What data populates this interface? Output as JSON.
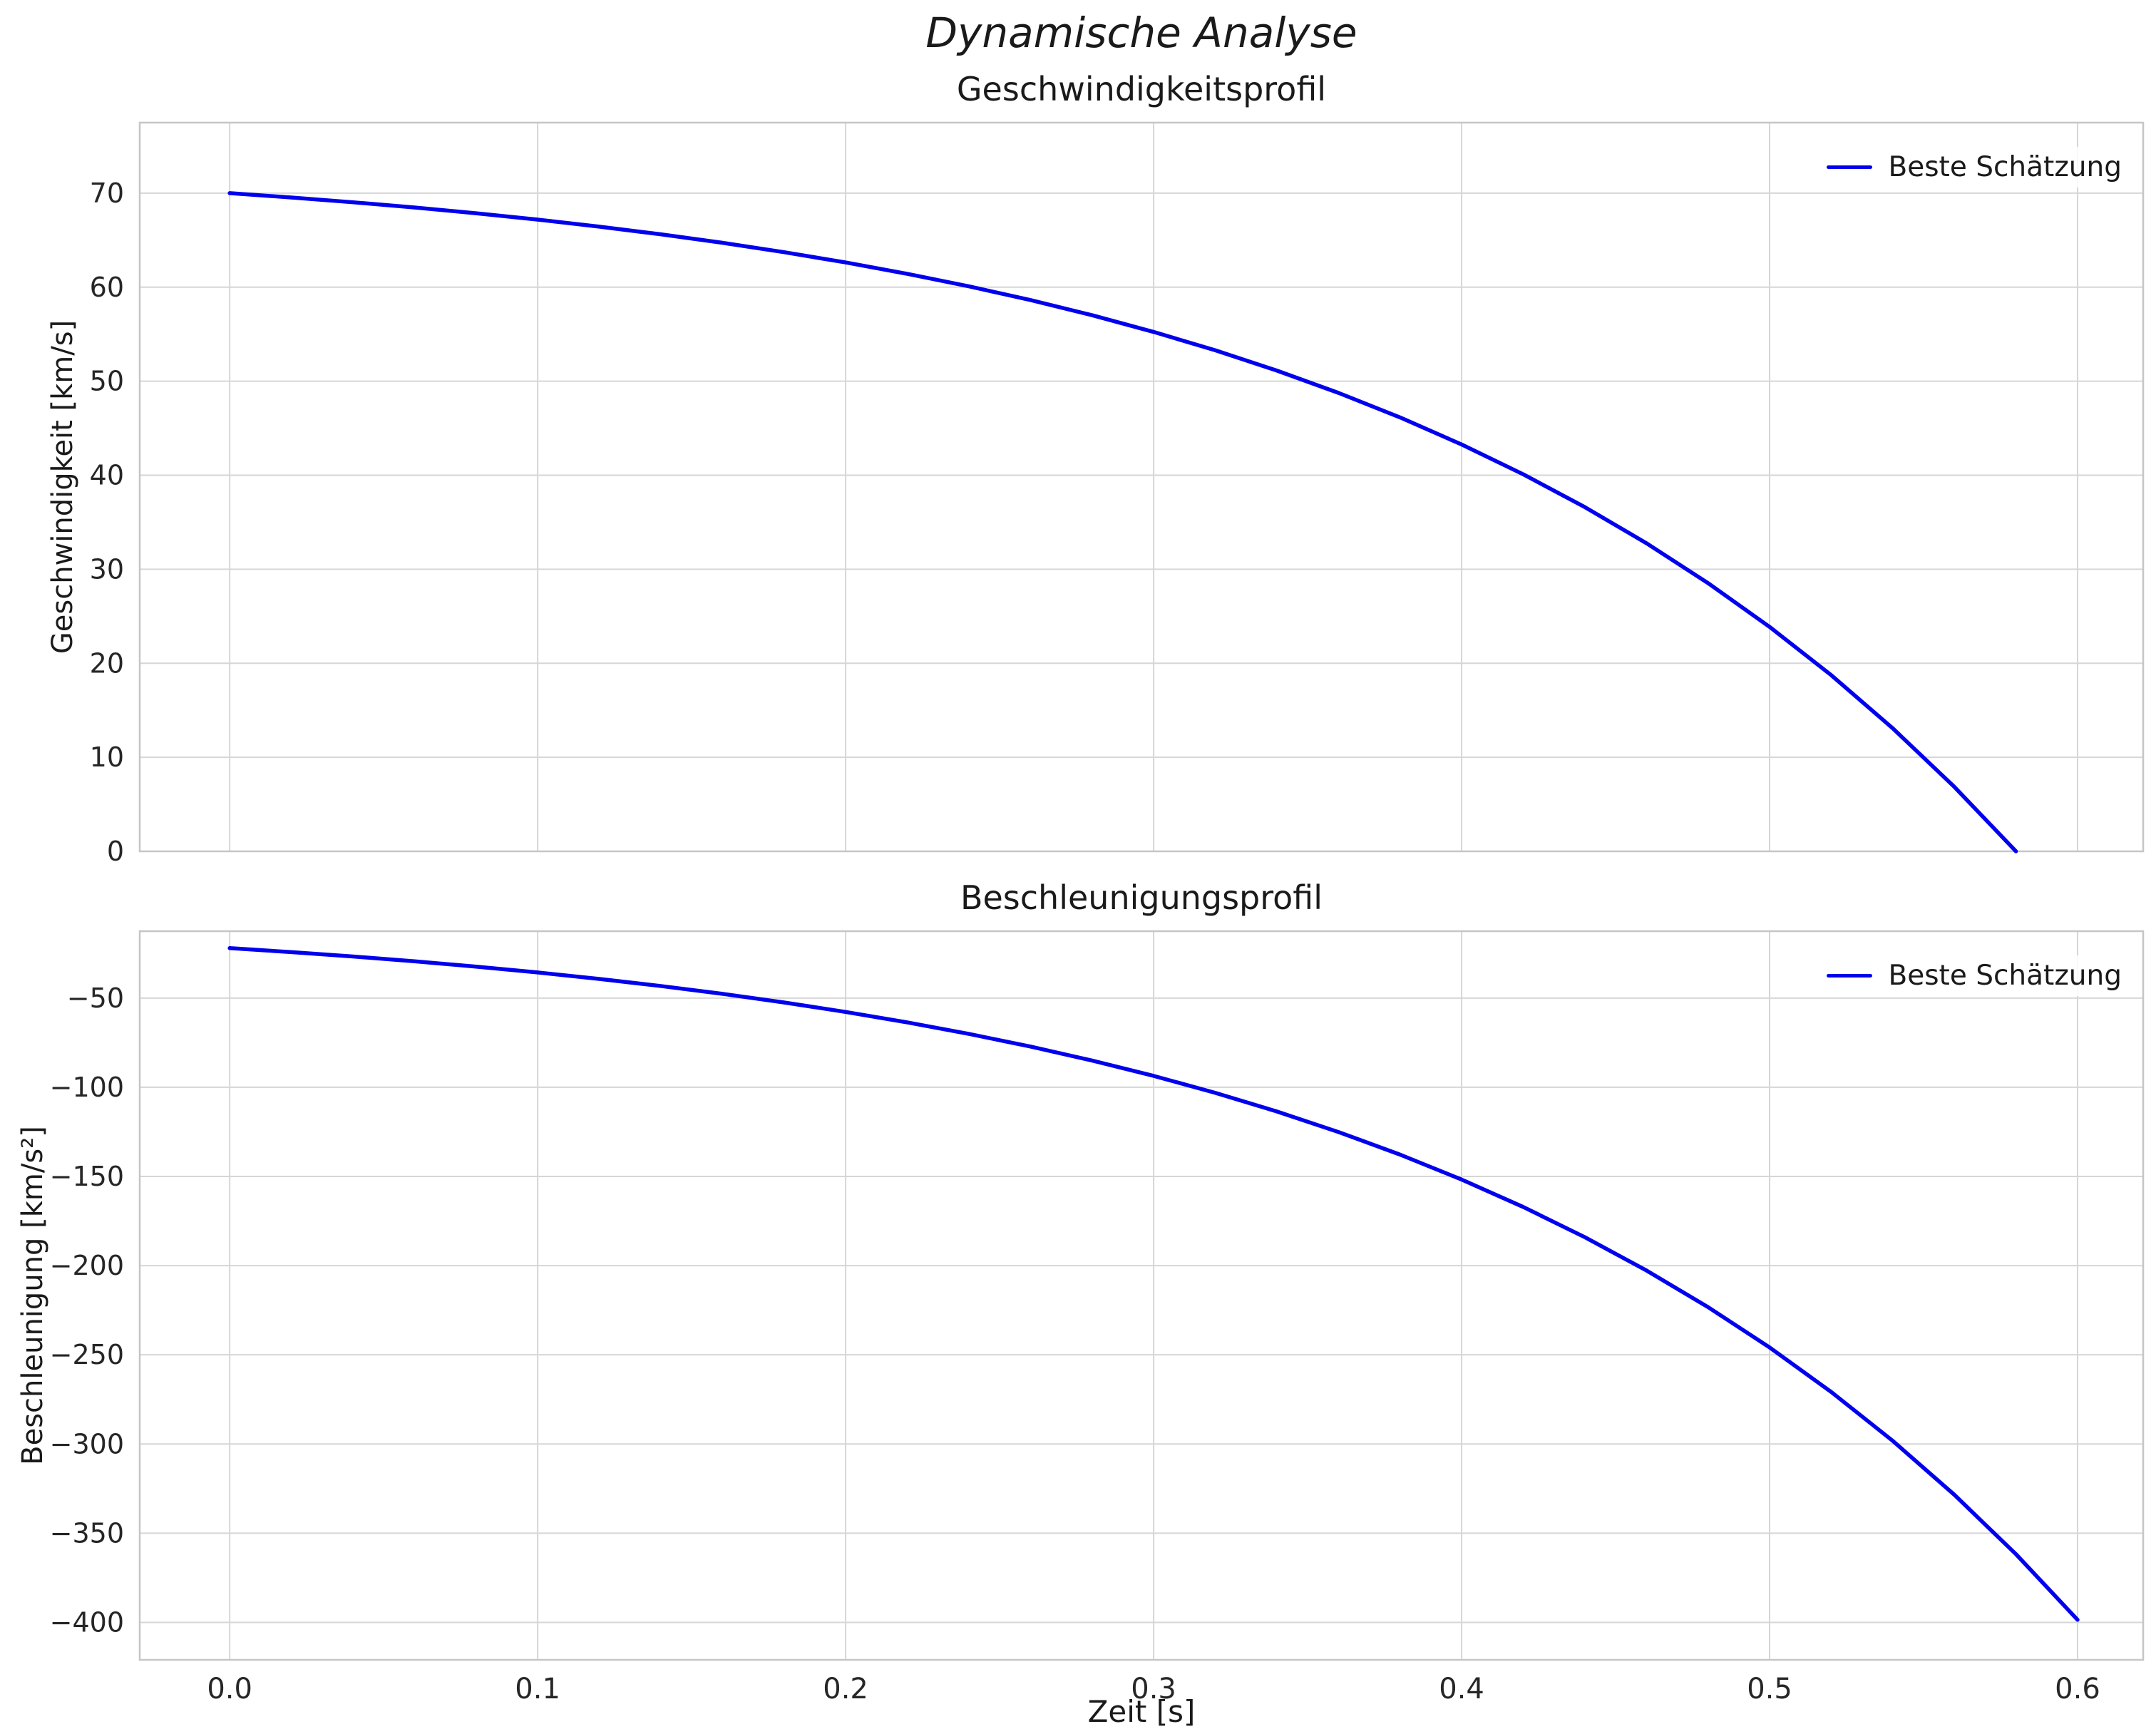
{
  "figure": {
    "title": "Dynamische Analyse"
  },
  "xlabel": "Zeit [s]",
  "colors": {
    "line": "#0000ee",
    "grid": "#d6d6d6",
    "frame": "#c6c6c6",
    "text": "#262626"
  },
  "chart_data": [
    {
      "type": "line",
      "title": "Geschwindigkeitsprofil",
      "ylabel": "Geschwindigkeit [km/s]",
      "legend_position": "upper right",
      "grid": true,
      "xlim": [
        -0.0292,
        0.6213
      ],
      "ylim": [
        0,
        77.5
      ],
      "show_xtick_labels": false,
      "xticks": {
        "values": [
          0.0,
          0.1,
          0.2,
          0.3,
          0.4,
          0.5,
          0.6
        ],
        "labels": [
          "0.0",
          "0.1",
          "0.2",
          "0.3",
          "0.4",
          "0.5",
          "0.6"
        ]
      },
      "yticks": {
        "values": [
          0,
          10,
          20,
          30,
          40,
          50,
          60,
          70
        ],
        "labels": [
          "0",
          "10",
          "20",
          "30",
          "40",
          "50",
          "60",
          "70"
        ]
      },
      "x": [
        0.0,
        0.02,
        0.04,
        0.06,
        0.08,
        0.1,
        0.12,
        0.14,
        0.16,
        0.18,
        0.2,
        0.22,
        0.24,
        0.26,
        0.28,
        0.3,
        0.32,
        0.34,
        0.36,
        0.38,
        0.4,
        0.42,
        0.44,
        0.46,
        0.48,
        0.5,
        0.52,
        0.54,
        0.56,
        0.58
      ],
      "series": [
        {
          "name": "Beste Schätzung",
          "values": [
            70.0,
            69.54,
            69.03,
            68.48,
            67.86,
            67.19,
            66.44,
            65.62,
            64.72,
            63.72,
            62.63,
            61.42,
            60.09,
            58.63,
            57.02,
            55.24,
            53.29,
            51.13,
            48.76,
            46.15,
            43.27,
            40.1,
            36.61,
            32.77,
            28.53,
            23.87,
            18.74,
            13.08,
            6.85,
            0.0
          ]
        }
      ]
    },
    {
      "type": "line",
      "title": "Beschleunigungsprofil",
      "ylabel": "Beschleunigung [km/s²]",
      "legend_position": "upper right",
      "grid": true,
      "xlim": [
        -0.0292,
        0.6213
      ],
      "ylim": [
        -421,
        -12.5
      ],
      "show_xtick_labels": true,
      "xticks": {
        "values": [
          0.0,
          0.1,
          0.2,
          0.3,
          0.4,
          0.5,
          0.6
        ],
        "labels": [
          "0.0",
          "0.1",
          "0.2",
          "0.3",
          "0.4",
          "0.5",
          "0.6"
        ]
      },
      "yticks": {
        "values": [
          -400,
          -350,
          -300,
          -250,
          -200,
          -150,
          -100,
          -50
        ],
        "labels": [
          "−400",
          "−350",
          "−300",
          "−250",
          "−200",
          "−150",
          "−100",
          "−50"
        ]
      },
      "x": [
        0.0,
        0.02,
        0.04,
        0.06,
        0.08,
        0.1,
        0.12,
        0.14,
        0.16,
        0.18,
        0.2,
        0.22,
        0.24,
        0.26,
        0.28,
        0.3,
        0.32,
        0.34,
        0.36,
        0.38,
        0.4,
        0.42,
        0.44,
        0.46,
        0.48,
        0.5,
        0.52,
        0.54,
        0.56,
        0.58,
        0.6
      ],
      "series": [
        {
          "name": "Beste Schätzung",
          "values": [
            -22.0,
            -24.23,
            -26.69,
            -29.39,
            -32.37,
            -35.65,
            -39.27,
            -43.25,
            -47.63,
            -52.46,
            -57.78,
            -63.64,
            -70.09,
            -77.19,
            -85.01,
            -93.63,
            -103.12,
            -113.57,
            -125.09,
            -137.76,
            -151.73,
            -167.11,
            -184.05,
            -202.7,
            -223.25,
            -245.87,
            -270.8,
            -298.25,
            -328.47,
            -361.77,
            -398.55
          ]
        }
      ]
    }
  ]
}
